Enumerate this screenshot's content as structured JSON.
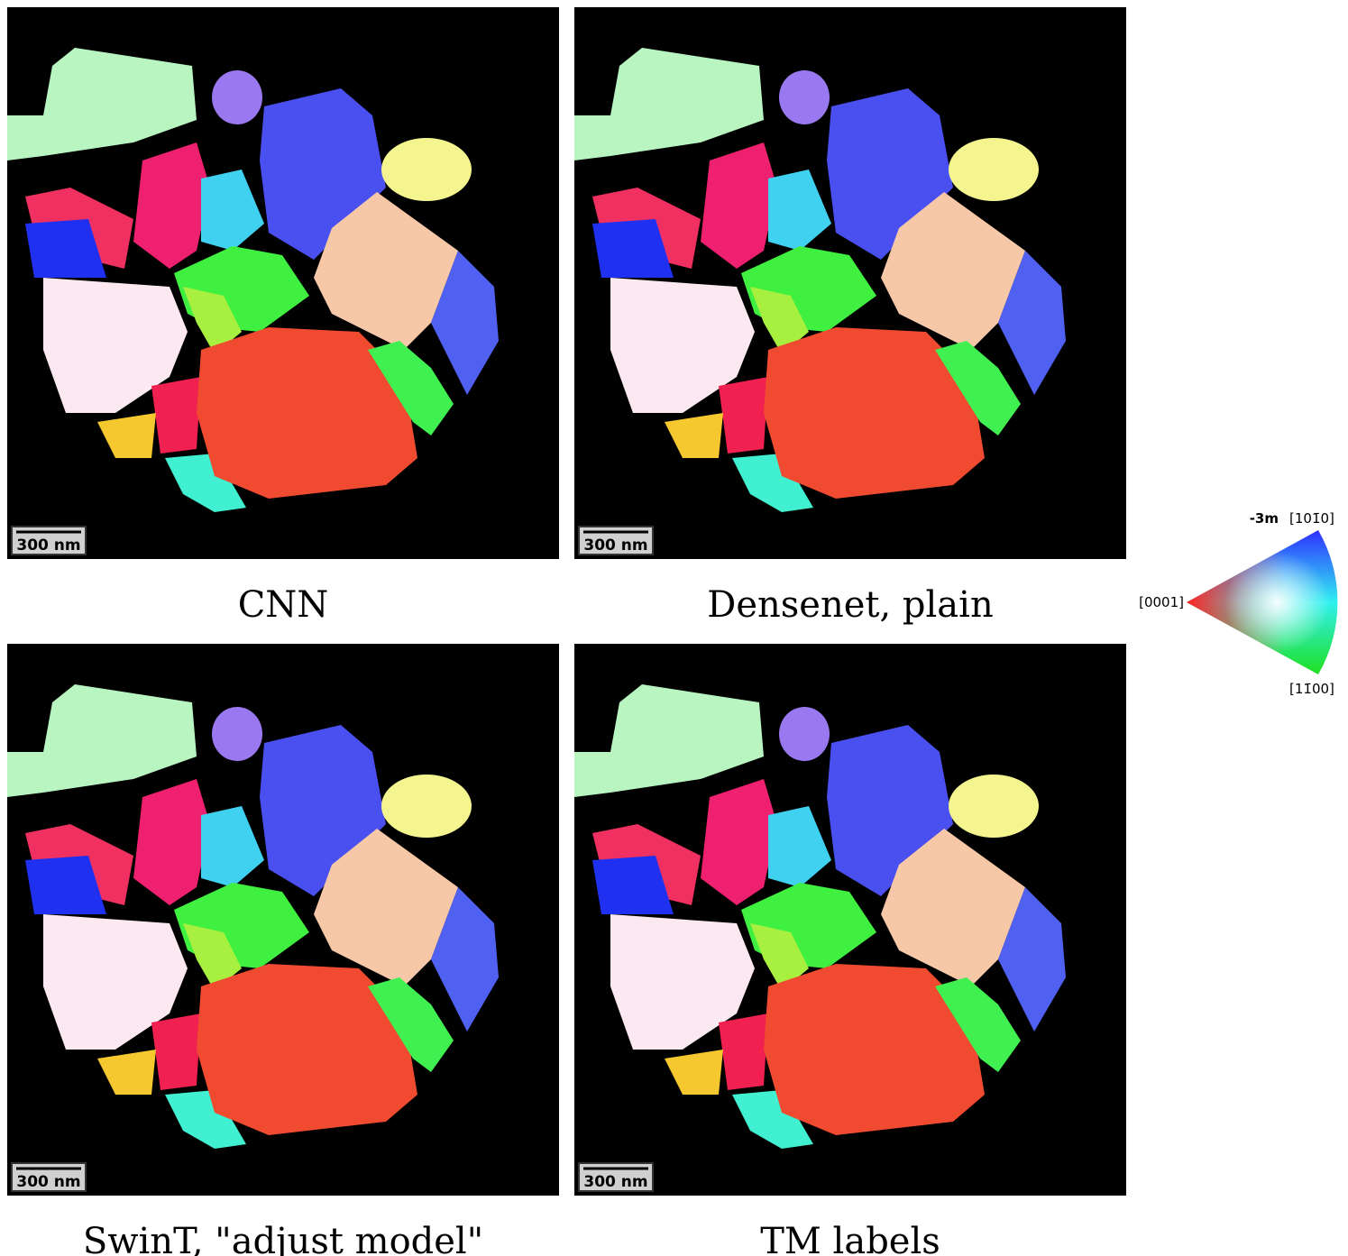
{
  "panels": [
    {
      "caption": "CNN",
      "scale_bar": "300 nm"
    },
    {
      "caption": "Densenet, plain",
      "scale_bar": "300 nm"
    },
    {
      "caption": "SwinT, \"adjust model\"",
      "scale_bar": "300 nm"
    },
    {
      "caption": "TM labels",
      "scale_bar": "300 nm"
    }
  ],
  "legend": {
    "symmetry": "-3m",
    "top": "[101̄0]",
    "left": "[0001]",
    "bottom": "[11̄00]"
  }
}
